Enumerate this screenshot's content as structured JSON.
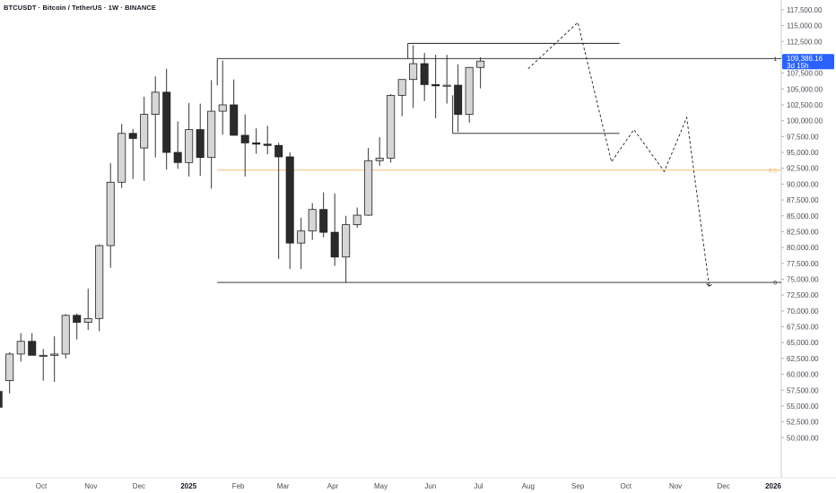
{
  "chart_title": "BTCUSDT · Bitcoin / TetherUS · 1W · BINANCE",
  "colors": {
    "up_candle": "#d6d6d6",
    "down_candle": "#2b2b2b",
    "outline": "#1f1f1f",
    "fib_mid": "#f5b25a",
    "badge": "#2962ff",
    "axis_text": "#4a4e58"
  },
  "chart_data": {
    "type": "candlestick",
    "title": "BTCUSDT · Bitcoin / TetherUS · 1W · BINANCE",
    "y_ticks": [
      50000,
      52500,
      55000,
      57500,
      60000,
      62500,
      65000,
      67500,
      70000,
      72500,
      75000,
      77500,
      80000,
      82500,
      85000,
      87500,
      90000,
      92500,
      95000,
      97500,
      100000,
      102500,
      105000,
      107500,
      110000,
      112500,
      115000,
      117500
    ],
    "x_ticks": [
      {
        "label": "Oct",
        "date": "2024-10-01"
      },
      {
        "label": "Nov",
        "date": "2024-11-01"
      },
      {
        "label": "Dec",
        "date": "2024-12-01"
      },
      {
        "label": "2025",
        "date": "2025-01-01",
        "bold": true
      },
      {
        "label": "Feb",
        "date": "2025-02-01"
      },
      {
        "label": "Mar",
        "date": "2025-03-01"
      },
      {
        "label": "Apr",
        "date": "2025-04-01"
      },
      {
        "label": "May",
        "date": "2025-05-01"
      },
      {
        "label": "Jun",
        "date": "2025-06-01"
      },
      {
        "label": "Jul",
        "date": "2025-07-01"
      },
      {
        "label": "Aug",
        "date": "2025-08-01"
      },
      {
        "label": "Sep",
        "date": "2025-09-01"
      },
      {
        "label": "Oct",
        "date": "2025-10-01"
      },
      {
        "label": "Nov",
        "date": "2025-11-01"
      },
      {
        "label": "Dec",
        "date": "2025-12-01"
      },
      {
        "label": "2026",
        "date": "2026-01-01",
        "bold": true
      }
    ],
    "ylim": [
      49000,
      119000
    ],
    "candles": [
      {
        "date": "2024-09-02",
        "o": 57300,
        "h": 59000,
        "l": 52500,
        "c": 54800
      },
      {
        "date": "2024-09-09",
        "o": 59000,
        "h": 63500,
        "l": 57000,
        "c": 63200
      },
      {
        "date": "2024-09-16",
        "o": 63200,
        "h": 66500,
        "l": 62000,
        "c": 65200
      },
      {
        "date": "2024-09-23",
        "o": 65200,
        "h": 66500,
        "l": 63000,
        "c": 63000
      },
      {
        "date": "2024-09-30",
        "o": 63000,
        "h": 64000,
        "l": 59000,
        "c": 63000
      },
      {
        "date": "2024-10-07",
        "o": 63000,
        "h": 66000,
        "l": 58800,
        "c": 63200
      },
      {
        "date": "2024-10-14",
        "o": 63200,
        "h": 69500,
        "l": 62500,
        "c": 69300
      },
      {
        "date": "2024-10-21",
        "o": 69300,
        "h": 69600,
        "l": 65500,
        "c": 68200
      },
      {
        "date": "2024-10-28",
        "o": 68200,
        "h": 73500,
        "l": 67000,
        "c": 68800
      },
      {
        "date": "2024-11-04",
        "o": 68800,
        "h": 80500,
        "l": 66800,
        "c": 80300
      },
      {
        "date": "2024-11-11",
        "o": 80300,
        "h": 93300,
        "l": 76800,
        "c": 90300
      },
      {
        "date": "2024-11-18",
        "o": 90300,
        "h": 99500,
        "l": 89400,
        "c": 98000
      },
      {
        "date": "2024-11-25",
        "o": 98000,
        "h": 98700,
        "l": 90800,
        "c": 97200
      },
      {
        "date": "2024-12-02",
        "o": 95700,
        "h": 103800,
        "l": 90500,
        "c": 101000
      },
      {
        "date": "2024-12-09",
        "o": 101000,
        "h": 107000,
        "l": 94200,
        "c": 104500
      },
      {
        "date": "2024-12-16",
        "o": 104500,
        "h": 108200,
        "l": 92300,
        "c": 95000
      },
      {
        "date": "2024-12-23",
        "o": 95000,
        "h": 99900,
        "l": 92400,
        "c": 93400
      },
      {
        "date": "2024-12-30",
        "o": 93400,
        "h": 102800,
        "l": 91200,
        "c": 98600
      },
      {
        "date": "2025-01-06",
        "o": 98600,
        "h": 102700,
        "l": 91300,
        "c": 94200
      },
      {
        "date": "2025-01-13",
        "o": 94200,
        "h": 106400,
        "l": 89300,
        "c": 101500
      },
      {
        "date": "2025-01-20",
        "o": 101500,
        "h": 109500,
        "l": 97800,
        "c": 102500
      },
      {
        "date": "2025-01-27",
        "o": 102500,
        "h": 106500,
        "l": 97900,
        "c": 97700
      },
      {
        "date": "2025-02-03",
        "o": 97700,
        "h": 101000,
        "l": 91200,
        "c": 96500
      },
      {
        "date": "2025-02-10",
        "o": 96500,
        "h": 98800,
        "l": 94800,
        "c": 96300
      },
      {
        "date": "2025-02-17",
        "o": 96300,
        "h": 99200,
        "l": 94700,
        "c": 96100
      },
      {
        "date": "2025-02-24",
        "o": 96100,
        "h": 96500,
        "l": 78200,
        "c": 94300
      },
      {
        "date": "2025-03-03",
        "o": 94300,
        "h": 95000,
        "l": 76600,
        "c": 80700
      },
      {
        "date": "2025-03-10",
        "o": 80700,
        "h": 84700,
        "l": 76600,
        "c": 82600
      },
      {
        "date": "2025-03-17",
        "o": 82600,
        "h": 87000,
        "l": 81200,
        "c": 86000
      },
      {
        "date": "2025-03-24",
        "o": 86000,
        "h": 88700,
        "l": 81600,
        "c": 82400
      },
      {
        "date": "2025-03-31",
        "o": 82400,
        "h": 88500,
        "l": 77100,
        "c": 78500
      },
      {
        "date": "2025-04-07",
        "o": 78500,
        "h": 85000,
        "l": 74500,
        "c": 83600
      },
      {
        "date": "2025-04-14",
        "o": 83600,
        "h": 86300,
        "l": 83100,
        "c": 85100
      },
      {
        "date": "2025-04-21",
        "o": 85100,
        "h": 95700,
        "l": 85000,
        "c": 93700
      },
      {
        "date": "2025-04-28",
        "o": 93700,
        "h": 97400,
        "l": 92900,
        "c": 94100
      },
      {
        "date": "2025-05-05",
        "o": 94100,
        "h": 104200,
        "l": 93400,
        "c": 104000
      },
      {
        "date": "2025-05-12",
        "o": 104000,
        "h": 105800,
        "l": 100700,
        "c": 106500
      },
      {
        "date": "2025-05-19",
        "o": 106500,
        "h": 111900,
        "l": 102000,
        "c": 109000
      },
      {
        "date": "2025-05-26",
        "o": 109000,
        "h": 110700,
        "l": 103100,
        "c": 105700
      },
      {
        "date": "2025-06-02",
        "o": 105700,
        "h": 110400,
        "l": 100400,
        "c": 105500
      },
      {
        "date": "2025-06-09",
        "o": 105500,
        "h": 110400,
        "l": 102700,
        "c": 105600
      },
      {
        "date": "2025-06-16",
        "o": 105600,
        "h": 108900,
        "l": 98200,
        "c": 101000
      },
      {
        "date": "2025-06-23",
        "o": 101000,
        "h": 108500,
        "l": 99700,
        "c": 108400
      },
      {
        "date": "2025-06-30",
        "o": 108400,
        "h": 110000,
        "l": 105100,
        "c": 109400
      }
    ],
    "levels": [
      {
        "label": "1",
        "price": 109800,
        "from": "2025-01-20",
        "color": "#1f1f1f"
      },
      {
        "label": "0.5",
        "price": 92200,
        "from": "2025-01-20",
        "color": "#f5b25a"
      },
      {
        "label": "0",
        "price": 74500,
        "from": "2025-01-20",
        "color": "#1f1f1f"
      }
    ],
    "range_box_lines": [
      {
        "price": 112200,
        "from": "2025-05-19",
        "to": "2025-09-22"
      },
      {
        "price": 98000,
        "from": "2025-06-16",
        "to": "2025-09-22"
      }
    ],
    "projection_path": [
      {
        "date": "2025-08-01",
        "price": 108200
      },
      {
        "date": "2025-09-01",
        "price": 115500
      },
      {
        "date": "2025-09-22",
        "price": 93500
      },
      {
        "date": "2025-10-06",
        "price": 98600
      },
      {
        "date": "2025-10-25",
        "price": 92000
      },
      {
        "date": "2025-11-08",
        "price": 100500
      },
      {
        "date": "2025-11-22",
        "price": 73900
      }
    ],
    "last_price": {
      "value": "109,386.16",
      "countdown": "3d 15h",
      "price": 109386.16
    },
    "grid": false
  }
}
